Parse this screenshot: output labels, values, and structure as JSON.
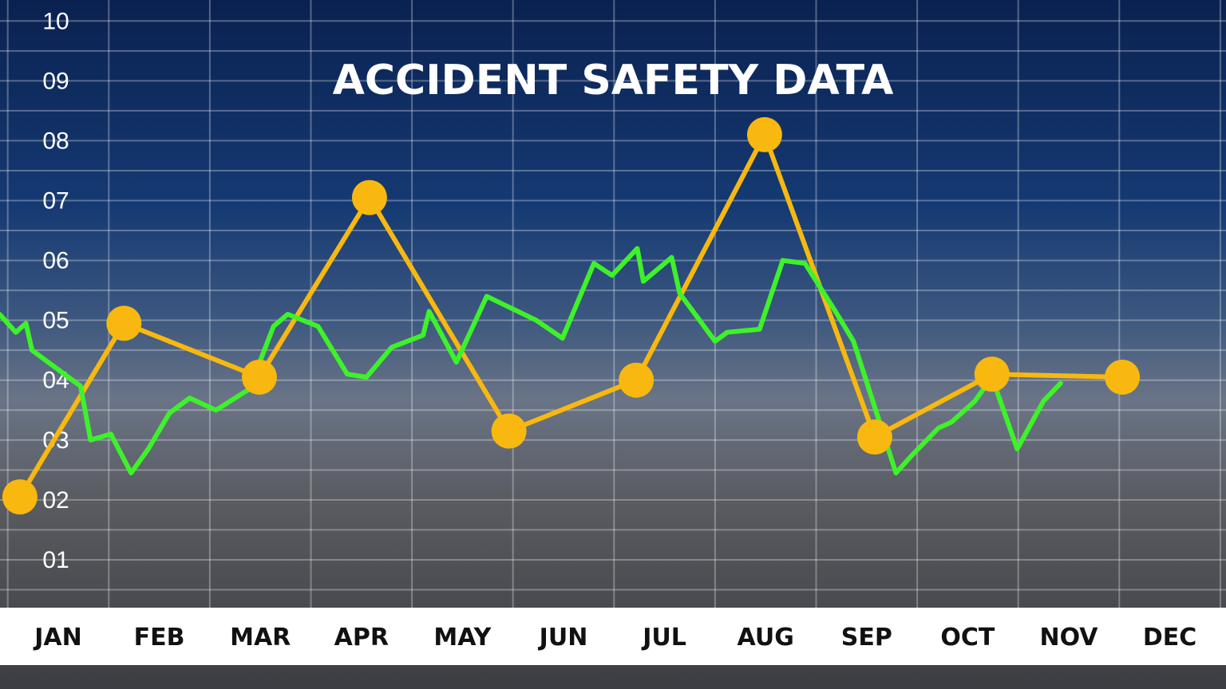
{
  "chart_data": {
    "type": "line",
    "title": "ACCIDENT SAFETY DATA",
    "categories": [
      "JAN",
      "FEB",
      "MAR",
      "APR",
      "MAY",
      "JUN",
      "JUL",
      "AUG",
      "SEP",
      "OCT",
      "NOV",
      "DEC"
    ],
    "y_tick_labels": [
      "01",
      "02",
      "03",
      "04",
      "05",
      "06",
      "07",
      "08",
      "09",
      "10"
    ],
    "ylim": [
      0.2,
      10.35
    ],
    "grid": true,
    "series": [
      {
        "color": "#f8b80f",
        "markers": true,
        "x": [
          -0.38,
          0.65,
          1.99,
          3.08,
          4.46,
          5.72,
          6.99,
          8.08,
          9.24,
          10.53
        ],
        "y": [
          2.05,
          4.95,
          4.05,
          7.05,
          3.15,
          4.0,
          8.1,
          3.05,
          4.1,
          4.05
        ]
      },
      {
        "color": "#3ef22a",
        "markers": false,
        "x": [
          -0.58,
          -0.42,
          -0.32,
          -0.26,
          0.22,
          0.32,
          0.52,
          0.72,
          0.89,
          1.1,
          1.3,
          1.56,
          1.89,
          2.13,
          2.27,
          2.57,
          2.86,
          3.05,
          3.3,
          3.61,
          3.67,
          3.94,
          4.24,
          4.73,
          4.99,
          5.3,
          5.48,
          5.73,
          5.79,
          6.07,
          6.15,
          6.5,
          6.62,
          6.94,
          7.17,
          7.39,
          7.69,
          7.87,
          8.29,
          8.45,
          8.71,
          8.84,
          9.07,
          9.24,
          9.49,
          9.75,
          9.92
        ],
        "y": [
          5.1,
          4.8,
          4.95,
          4.5,
          3.9,
          3.0,
          3.1,
          2.45,
          2.85,
          3.45,
          3.7,
          3.5,
          3.85,
          4.9,
          5.1,
          4.9,
          4.1,
          4.05,
          4.55,
          4.75,
          5.15,
          4.3,
          5.4,
          5.0,
          4.7,
          5.95,
          5.75,
          6.2,
          5.65,
          6.05,
          5.45,
          4.65,
          4.8,
          4.85,
          6.0,
          5.95,
          5.15,
          4.65,
          2.45,
          2.75,
          3.2,
          3.3,
          3.65,
          4.05,
          2.85,
          3.65,
          3.95
        ]
      }
    ]
  }
}
